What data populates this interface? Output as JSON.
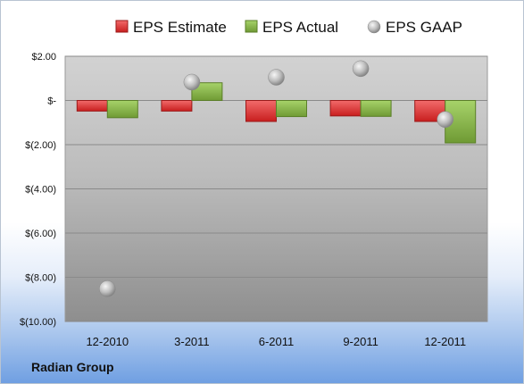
{
  "company": "Radian Group",
  "chart_data": {
    "type": "bar",
    "categories": [
      "12-2010",
      "3-2011",
      "6-2011",
      "9-2011",
      "12-2011"
    ],
    "series": [
      {
        "name": "EPS Estimate",
        "kind": "bar",
        "color": "#e23b3b",
        "values": [
          -0.48,
          -0.48,
          -0.95,
          -0.7,
          -0.95
        ]
      },
      {
        "name": "EPS Actual",
        "kind": "bar",
        "color": "#8bb84a",
        "values": [
          -0.78,
          0.8,
          -0.73,
          -0.72,
          -1.92
        ]
      },
      {
        "name": "EPS GAAP",
        "kind": "marker",
        "color": "#b8b8b8",
        "values": [
          -8.52,
          0.83,
          1.05,
          1.44,
          -0.86
        ]
      }
    ],
    "ylim": [
      -10,
      2
    ],
    "yticks": [
      2,
      0,
      -2,
      -4,
      -6,
      -8,
      -10
    ],
    "ytick_labels": [
      "$2.00",
      "$-",
      "$(2.00)",
      "$(4.00)",
      "$(6.00)",
      "$(8.00)",
      "$(10.00)"
    ],
    "grid": true,
    "legend_position": "top"
  }
}
